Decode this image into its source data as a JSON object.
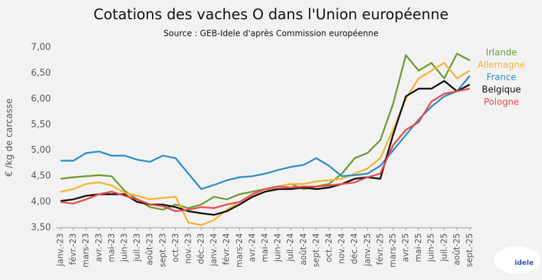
{
  "chart_data": {
    "type": "line",
    "title": "Cotations des vaches O dans l'Union européenne",
    "subtitle": "Source : GEB-Idele d'après Commission européenne",
    "y_label": "€ /kg de carcasse",
    "logo": "idele",
    "categories": [
      "janv.-23",
      "févr.-23",
      "mars-23",
      "avr.-23",
      "mai-23",
      "juin-23",
      "juil.-23",
      "août-23",
      "sept.-23",
      "oct.-23",
      "nov.-23",
      "déc.-23",
      "janv.-24",
      "févr.-24",
      "mars-24",
      "avr.-24",
      "mai-24",
      "juin-24",
      "juil.-24",
      "août-24",
      "sept.-24",
      "oct.-24",
      "nov.-24",
      "déc.-24",
      "janv.-25",
      "févr.-25",
      "mars-25",
      "avr.-25",
      "mai-25",
      "juin-25",
      "juil.-25",
      "août-25",
      "sept.-25"
    ],
    "series": [
      {
        "name": "Irlande",
        "color": "#6f9a35",
        "values": [
          4.45,
          4.48,
          4.5,
          4.52,
          4.5,
          4.22,
          4.05,
          3.9,
          3.85,
          3.95,
          3.88,
          3.95,
          4.1,
          4.05,
          4.15,
          4.2,
          4.25,
          4.3,
          4.35,
          4.25,
          4.3,
          4.35,
          4.55,
          4.85,
          4.95,
          5.2,
          5.9,
          6.85,
          6.55,
          6.7,
          6.4,
          6.88,
          6.75
        ]
      },
      {
        "name": "Allemagne",
        "color": "#f5b431",
        "values": [
          4.2,
          4.25,
          4.35,
          4.38,
          4.32,
          4.18,
          4.12,
          4.05,
          4.08,
          4.1,
          3.6,
          3.55,
          3.65,
          3.85,
          4.0,
          4.1,
          4.2,
          4.3,
          4.35,
          4.35,
          4.4,
          4.42,
          4.45,
          4.55,
          4.65,
          4.85,
          5.4,
          6.0,
          6.4,
          6.55,
          6.7,
          6.4,
          6.55
        ]
      },
      {
        "name": "France",
        "color": "#2e8fc6",
        "values": [
          4.8,
          4.8,
          4.95,
          4.98,
          4.9,
          4.9,
          4.82,
          4.78,
          4.9,
          4.85,
          4.55,
          4.25,
          4.33,
          4.42,
          4.48,
          4.5,
          4.55,
          4.62,
          4.68,
          4.72,
          4.85,
          4.7,
          4.5,
          4.52,
          4.55,
          4.7,
          5.0,
          5.3,
          5.6,
          5.85,
          6.05,
          6.15,
          6.45
        ]
      },
      {
        "name": "Belgique",
        "color": "#111111",
        "values": [
          4.02,
          4.05,
          4.12,
          4.15,
          4.15,
          4.15,
          4.0,
          3.95,
          3.95,
          3.9,
          3.82,
          3.78,
          3.75,
          3.82,
          3.95,
          4.1,
          4.2,
          4.25,
          4.25,
          4.28,
          4.25,
          4.28,
          4.35,
          4.45,
          4.48,
          4.45,
          5.3,
          6.05,
          6.2,
          6.2,
          6.35,
          6.15,
          6.28
        ]
      },
      {
        "name": "Pologne",
        "color": "#ea4a4a",
        "values": [
          4.0,
          3.97,
          4.05,
          4.15,
          4.2,
          4.12,
          4.05,
          3.95,
          3.92,
          3.82,
          3.85,
          3.9,
          3.88,
          3.95,
          4.0,
          4.15,
          4.25,
          4.3,
          4.28,
          4.3,
          4.3,
          4.32,
          4.35,
          4.38,
          4.48,
          4.55,
          5.1,
          5.4,
          5.55,
          5.95,
          6.1,
          6.15,
          6.2
        ]
      }
    ],
    "ylim": [
      3.5,
      7.0
    ],
    "yticks": [
      {
        "value": 3.5,
        "label": "3,50"
      },
      {
        "value": 4,
        "label": "4,00"
      },
      {
        "value": 4.5,
        "label": "4,50"
      },
      {
        "value": 5,
        "label": "5,00"
      },
      {
        "value": 5.5,
        "label": "5,50"
      },
      {
        "value": 6,
        "label": "6,00"
      },
      {
        "value": 6.5,
        "label": "6,50"
      },
      {
        "value": 7,
        "label": "7,00"
      }
    ],
    "grid": false
  }
}
